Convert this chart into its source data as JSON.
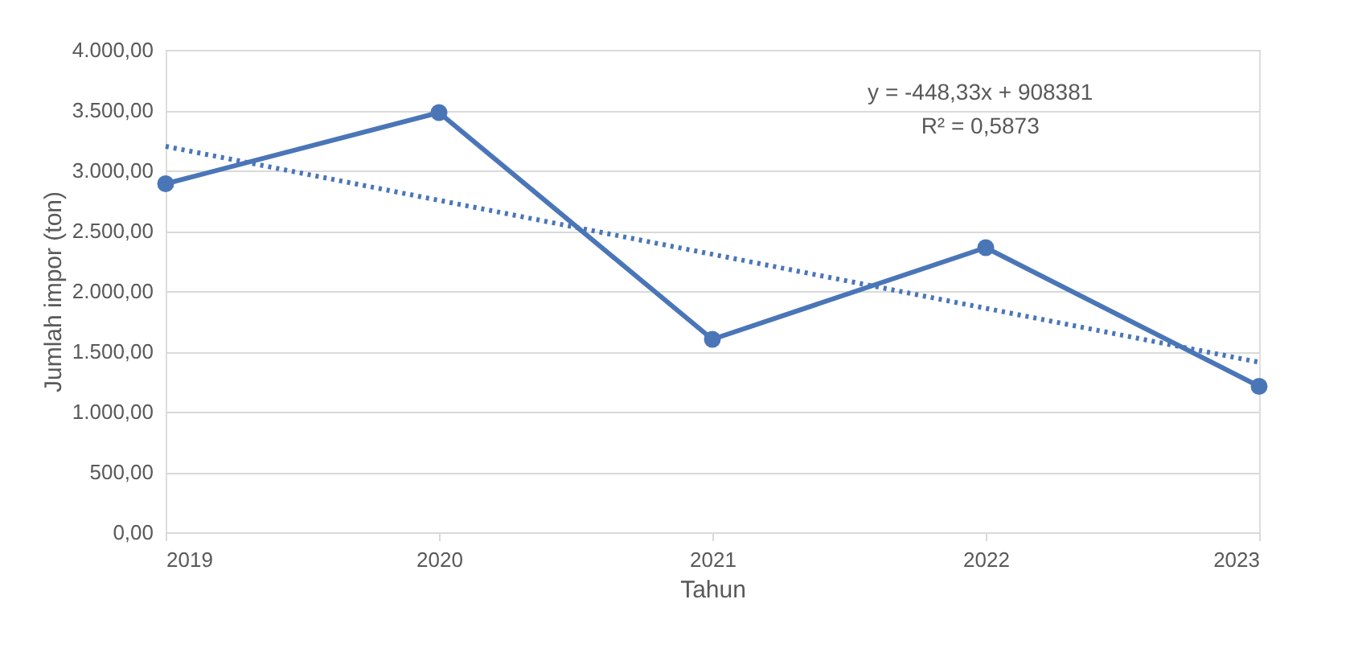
{
  "chart_data": {
    "type": "line",
    "xlabel": "Tahun",
    "ylabel": "Jumlah impor (ton)",
    "x": [
      2019,
      2020,
      2021,
      2022,
      2023
    ],
    "series": [
      {
        "color": "#4a76b8",
        "values": [
          2890,
          3480,
          1600,
          2360,
          1210
        ],
        "marker": "circle",
        "line_style": "solid"
      },
      {
        "type": "line",
        "color": "#4a76b8",
        "x": [
          2019,
          2023
        ],
        "values": [
          3200,
          1410
        ],
        "marker": "none",
        "line_style": "dotted"
      }
    ],
    "xlim": [
      2019,
      2023
    ],
    "xticks": [
      2019,
      2020,
      2021,
      2022,
      2023
    ],
    "ylim": [
      0,
      4000
    ],
    "yticks": [
      {
        "value": 0,
        "label": "0,00"
      },
      {
        "value": 500,
        "label": "500,00"
      },
      {
        "value": 1000,
        "label": "1.000,00"
      },
      {
        "value": 1500,
        "label": "1.500,00"
      },
      {
        "value": 2000,
        "label": "2.000,00"
      },
      {
        "value": 2500,
        "label": "2.500,00"
      },
      {
        "value": 3000,
        "label": "3.000,00"
      },
      {
        "value": 3500,
        "label": "3.500,00"
      },
      {
        "value": 4000,
        "label": "4.000,00"
      }
    ],
    "grid": "y",
    "annotations": [
      "y = -448,33x + 908381",
      "R² = 0,5873"
    ]
  }
}
